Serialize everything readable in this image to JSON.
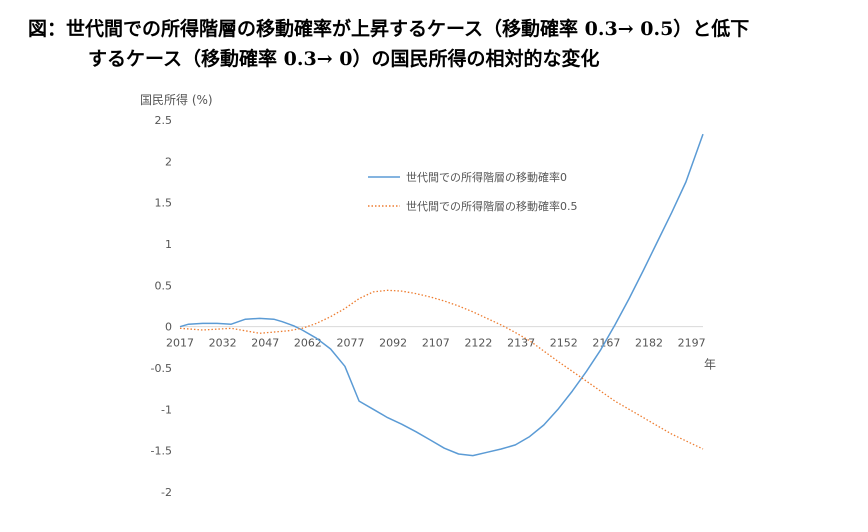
{
  "title": {
    "line1": "図：世代間での所得階層の移動確率が上昇するケース（移動確率 0.3→ 0.5）と低下",
    "line2": "するケース（移動確率 0.3→ 0）の国民所得の相対的な変化"
  },
  "chart_data": {
    "type": "line",
    "title": "図：世代間での所得階層の移動確率が上昇するケース（移動確率 0.3→ 0.5）と低下するケース（移動確率 0.3→ 0）の国民所得の相対的な変化",
    "ylabel": "国民所得 (%)",
    "xlabel": "年",
    "ylim": [
      -2,
      2.5
    ],
    "xlim": [
      2017,
      2201
    ],
    "yticks": [
      "2.5",
      "2",
      "1.5",
      "1",
      "0.5",
      "0",
      "-0.5",
      "-1",
      "-1.5",
      "-2"
    ],
    "xticks": [
      "2017",
      "2032",
      "2047",
      "2062",
      "2077",
      "2092",
      "2107",
      "2122",
      "2137",
      "2152",
      "2167",
      "2182",
      "2197"
    ],
    "grid": false,
    "legend_position": "center-right",
    "series": [
      {
        "name": "世代間での所得階層の移動確率0",
        "color": "#5b9bd5",
        "style": "solid",
        "x": [
          2017,
          2020,
          2025,
          2030,
          2035,
          2040,
          2045,
          2050,
          2053,
          2057,
          2060,
          2065,
          2070,
          2075,
          2080,
          2085,
          2090,
          2095,
          2100,
          2105,
          2110,
          2115,
          2120,
          2125,
          2130,
          2135,
          2140,
          2145,
          2150,
          2155,
          2160,
          2165,
          2170,
          2175,
          2180,
          2185,
          2190,
          2195,
          2201
        ],
        "y": [
          0.0,
          0.03,
          0.04,
          0.04,
          0.03,
          0.09,
          0.1,
          0.09,
          0.06,
          0.01,
          -0.04,
          -0.14,
          -0.27,
          -0.48,
          -0.9,
          -1.0,
          -1.1,
          -1.18,
          -1.27,
          -1.37,
          -1.47,
          -1.54,
          -1.56,
          -1.52,
          -1.48,
          -1.43,
          -1.33,
          -1.19,
          -1.0,
          -0.78,
          -0.54,
          -0.28,
          0.02,
          0.34,
          0.68,
          1.03,
          1.38,
          1.75,
          2.33
        ]
      },
      {
        "name": "世代間での所得階層の移動確率0.5",
        "color": "#ed7d31",
        "style": "dotted",
        "x": [
          2017,
          2025,
          2035,
          2045,
          2055,
          2060,
          2065,
          2070,
          2075,
          2080,
          2085,
          2090,
          2095,
          2100,
          2105,
          2110,
          2115,
          2120,
          2125,
          2130,
          2135,
          2140,
          2150,
          2160,
          2170,
          2180,
          2190,
          2201
        ],
        "y": [
          -0.02,
          -0.04,
          -0.02,
          -0.08,
          -0.05,
          -0.02,
          0.04,
          0.12,
          0.22,
          0.34,
          0.42,
          0.44,
          0.43,
          0.4,
          0.36,
          0.31,
          0.25,
          0.18,
          0.1,
          0.02,
          -0.07,
          -0.17,
          -0.42,
          -0.66,
          -0.9,
          -1.1,
          -1.3,
          -1.48
        ]
      }
    ]
  }
}
